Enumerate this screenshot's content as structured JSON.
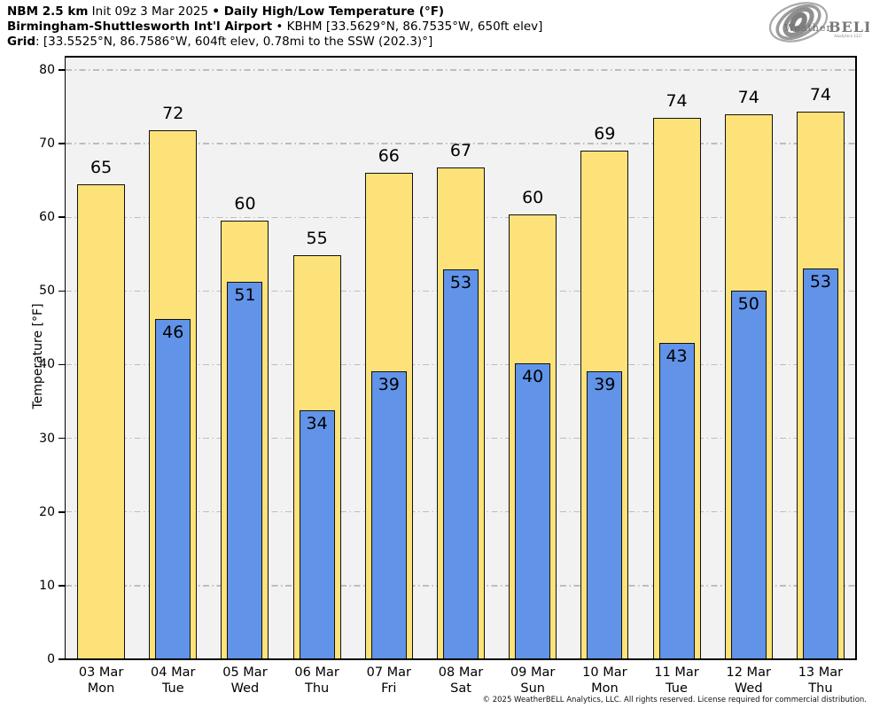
{
  "header": {
    "line1": [
      {
        "text": "NBM 2.5 km",
        "bold": true
      },
      {
        "text": " Init 09z 3 Mar 2025 ",
        "bold": false
      },
      {
        "text": "• Daily High/Low Temperature (°F)",
        "bold": true
      }
    ],
    "line2": [
      {
        "text": "Birmingham-Shuttlesworth Int'l Airport",
        "bold": true
      },
      {
        "text": " • KBHM [33.5629°N, 86.7535°W, 650ft elev]",
        "bold": false
      }
    ],
    "line3": [
      {
        "text": "Grid",
        "bold": true
      },
      {
        "text": ": [33.5525°N, 86.7586°W, 604ft elev, 0.78mi to the SSW (202.3)°]",
        "bold": false
      }
    ]
  },
  "logo": {
    "word_weather": "Weather",
    "word_bell": "BELL",
    "subtext": "Analytics LLC"
  },
  "chart_data": {
    "type": "bar",
    "title": "NBM 2.5 km Init 09z 3 Mar 2025 • Daily High/Low Temperature (°F)",
    "subtitle": "Birmingham-Shuttlesworth Int'l Airport • KBHM [33.5629°N, 86.7535°W, 650ft elev]",
    "grid_point": "Grid: [33.5525°N, 86.7586°W, 604ft elev, 0.78mi to the SSW (202.3)°]",
    "categories": [
      "03 Mar",
      "04 Mar",
      "05 Mar",
      "06 Mar",
      "07 Mar",
      "08 Mar",
      "09 Mar",
      "10 Mar",
      "11 Mar",
      "12 Mar",
      "13 Mar"
    ],
    "weekdays": [
      "Mon",
      "Tue",
      "Wed",
      "Thu",
      "Fri",
      "Sat",
      "Sun",
      "Mon",
      "Tue",
      "Wed",
      "Thu"
    ],
    "series": [
      {
        "name": "High",
        "color": "#FDE27A",
        "values": [
          65,
          72,
          60,
          55,
          66,
          67,
          60,
          69,
          74,
          74,
          74
        ],
        "bar_tops": [
          64.5,
          71.8,
          59.6,
          54.9,
          66.0,
          66.8,
          60.4,
          69.0,
          73.5,
          74.0,
          74.3
        ]
      },
      {
        "name": "Low",
        "color": "#6193E8",
        "values": [
          null,
          46,
          51,
          34,
          39,
          53,
          40,
          39,
          43,
          50,
          53
        ],
        "bar_tops": [
          null,
          46.2,
          51.2,
          33.8,
          39.1,
          52.9,
          40.2,
          39.1,
          42.9,
          50.1,
          53.0
        ]
      }
    ],
    "xlabel": "",
    "ylabel": "Temperature [°F]",
    "ylim": [
      0,
      81.8
    ],
    "yticks": [
      0,
      10,
      20,
      30,
      40,
      50,
      60,
      70,
      80
    ],
    "grid": true,
    "grid_style": "dash-dot",
    "legend_position": "none",
    "plot_background": "#F2F2F2",
    "bar_edge_color": "#111111"
  },
  "footer": {
    "copyright": "© 2025 WeatherBELL Analytics, LLC. All rights reserved. License required for commercial distribution."
  }
}
